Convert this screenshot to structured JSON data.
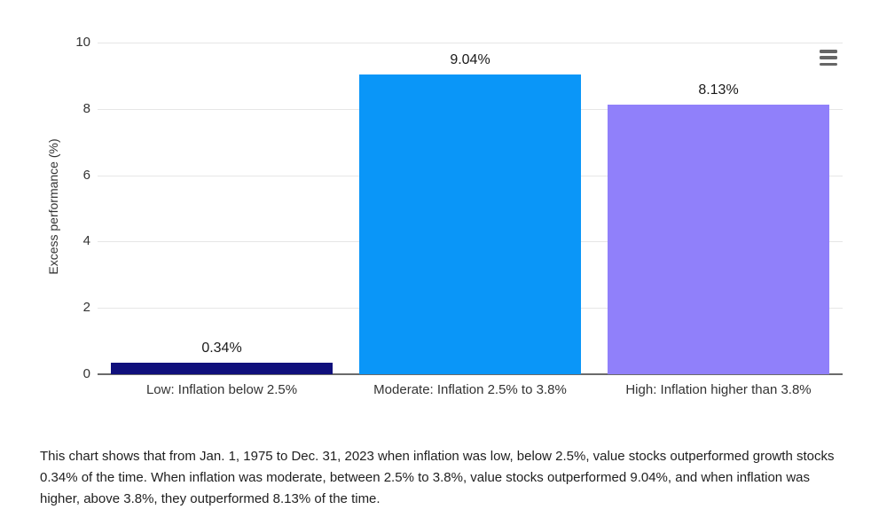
{
  "chart_data": {
    "type": "bar",
    "categories": [
      "Low: Inflation below 2.5%",
      "Moderate: Inflation 2.5% to 3.8%",
      "High: Inflation higher than 3.8%"
    ],
    "values": [
      0.34,
      9.04,
      8.13
    ],
    "value_labels": [
      "0.34%",
      "9.04%",
      "8.13%"
    ],
    "bar_colors": [
      "#10107c",
      "#0a96f8",
      "#9080fa"
    ],
    "title": "",
    "xlabel": "",
    "ylabel": "Excess performance (%)",
    "ylim": [
      0,
      10
    ],
    "yticks": [
      0,
      2,
      4,
      6,
      8,
      10
    ],
    "grid": true,
    "legend": false
  },
  "colors": {
    "gridline": "#e6e6e6",
    "axis_line": "#6b6b6b",
    "tick_text": "#333333",
    "value_label_text": "#1a1a1a",
    "menu_icon": "#666666"
  },
  "toolbar": {
    "menu_icon": "hamburger-menu-icon"
  },
  "description": {
    "lines": [
      "This chart shows that from Jan. 1, 1975 to Dec. 31, 2023 when inflation was low, below 2.5%, value stocks outperformed growth stocks",
      "0.34% of the time. When inflation was moderate, between 2.5% to 3.8%, value stocks outperformed 9.04%, and when inflation was",
      "higher, above 3.8%, they outperformed 8.13% of the time."
    ]
  }
}
